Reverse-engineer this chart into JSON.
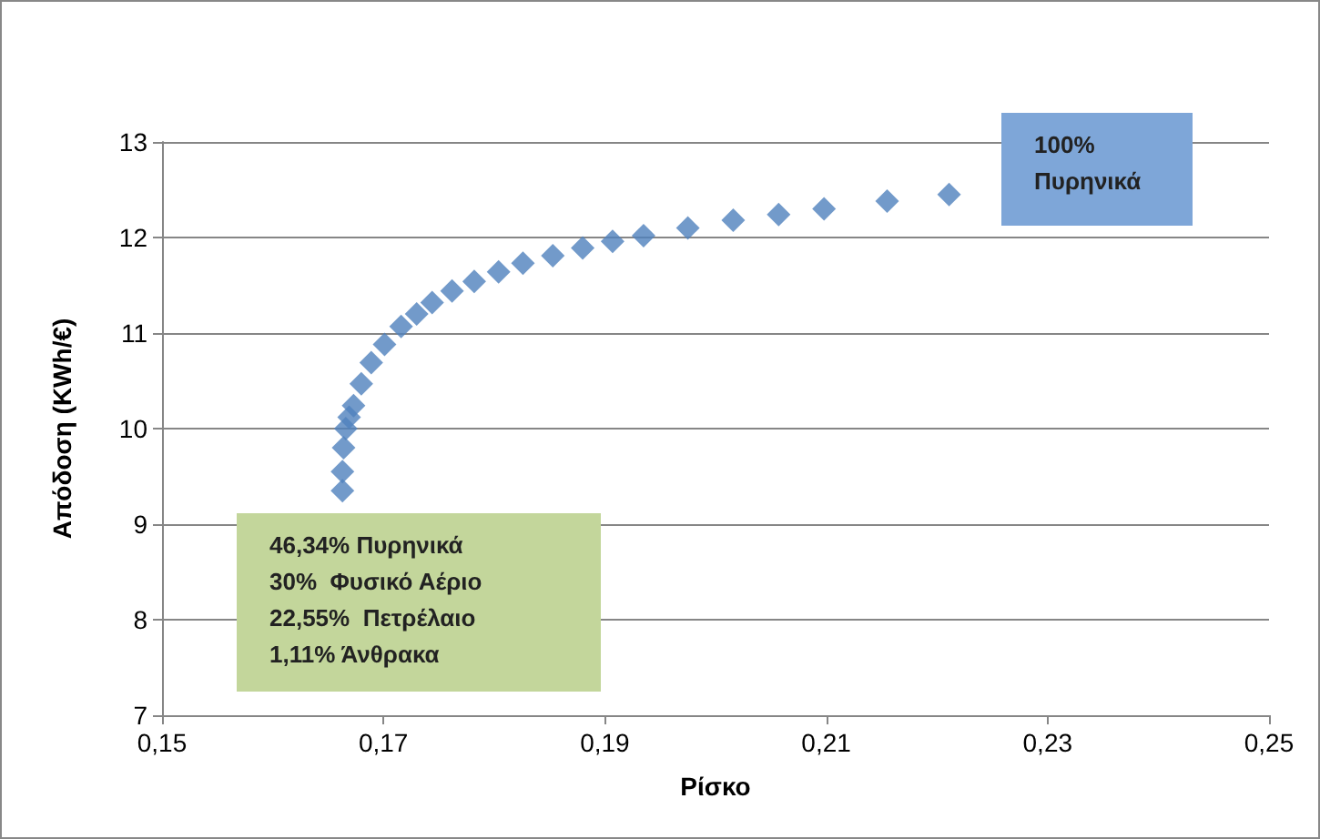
{
  "chart_data": {
    "type": "scatter",
    "xlabel": "Ρίσκο",
    "ylabel": "Απόδοση (KWh/€)",
    "x": [
      0.1663,
      0.1663,
      0.1664,
      0.1666,
      0.1669,
      0.1673,
      0.168,
      0.1689,
      0.1701,
      0.1716,
      0.173,
      0.1744,
      0.1762,
      0.1782,
      0.1804,
      0.1826,
      0.1853,
      0.188,
      0.1907,
      0.1935,
      0.1975,
      0.2016,
      0.2057,
      0.2098,
      0.2155,
      0.2211
    ],
    "values": [
      9.35,
      9.55,
      9.8,
      10.0,
      10.12,
      10.24,
      10.47,
      10.69,
      10.88,
      11.07,
      11.2,
      11.32,
      11.44,
      11.54,
      11.64,
      11.73,
      11.81,
      11.89,
      11.96,
      12.02,
      12.1,
      12.18,
      12.24,
      12.3,
      12.38,
      12.45
    ],
    "color": "#4f81bd",
    "marker": "diamond",
    "xlim": [
      0.15,
      0.25
    ],
    "xticks": [
      {
        "value": 0.15,
        "label": "0,15"
      },
      {
        "value": 0.17,
        "label": "0,17"
      },
      {
        "value": 0.19,
        "label": "0,19"
      },
      {
        "value": 0.21,
        "label": "0,21"
      },
      {
        "value": 0.23,
        "label": "0,23"
      },
      {
        "value": 0.25,
        "label": "0,25"
      }
    ],
    "ylim": [
      7,
      13
    ],
    "yticks": [
      7,
      8,
      9,
      10,
      11,
      12,
      13
    ],
    "grid": "y",
    "annotations": [
      "100%\nΠυρηνικά",
      "46,34% Πυρηνικά\n30%  Φυσικό Αέριο\n22,55%  Πετρέλαιο\n1,11% Άνθρακα"
    ]
  }
}
